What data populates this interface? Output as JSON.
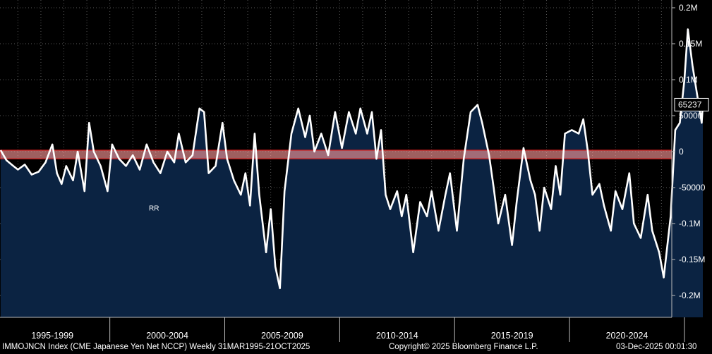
{
  "chart_data": {
    "type": "area",
    "title": "",
    "xlabel": "",
    "ylabel": "",
    "x_range": [
      1995.25,
      2025.8
    ],
    "ylim": [
      -240000,
      200000
    ],
    "grid": true,
    "legend": "none",
    "y_ticks": [
      {
        "value": 200000,
        "label": "0.2M"
      },
      {
        "value": 150000,
        "label": "0.15M"
      },
      {
        "value": 100000,
        "label": "0.1M"
      },
      {
        "value": 50000,
        "label": "50000"
      },
      {
        "value": 0,
        "label": "0"
      },
      {
        "value": -50000,
        "label": "-50000"
      },
      {
        "value": -100000,
        "label": "-0.1M"
      },
      {
        "value": -150000,
        "label": "-0.15M"
      },
      {
        "value": -200000,
        "label": "-0.2M"
      }
    ],
    "x_bands": [
      {
        "label": "1995-1999",
        "start": 1995,
        "end": 2000
      },
      {
        "label": "2000-2004",
        "start": 2000,
        "end": 2005
      },
      {
        "label": "2005-2009",
        "start": 2005,
        "end": 2010
      },
      {
        "label": "2010-2014",
        "start": 2010,
        "end": 2015
      },
      {
        "label": "2015-2019",
        "start": 2015,
        "end": 2020
      },
      {
        "label": "2020-2024",
        "start": 2020,
        "end": 2025
      }
    ],
    "highlight_band": {
      "y_from": -10000,
      "y_to": 2000,
      "color": "#ff9a9a"
    },
    "last_value": {
      "value": 65237,
      "label": "65237"
    },
    "annotation": {
      "text": "RR",
      "x": 2001.7,
      "y": -78000
    },
    "series": [
      {
        "color": "#ffffff",
        "fill": "#0b2342",
        "points": [
          [
            1995.25,
            2000
          ],
          [
            1995.5,
            -12000
          ],
          [
            1995.8,
            -20000
          ],
          [
            1996.0,
            -25000
          ],
          [
            1996.3,
            -18000
          ],
          [
            1996.6,
            -32000
          ],
          [
            1996.9,
            -28000
          ],
          [
            1997.2,
            -15000
          ],
          [
            1997.5,
            10000
          ],
          [
            1997.7,
            -30000
          ],
          [
            1997.9,
            -45000
          ],
          [
            1998.1,
            -20000
          ],
          [
            1998.4,
            -40000
          ],
          [
            1998.6,
            0
          ],
          [
            1998.9,
            -55000
          ],
          [
            1999.1,
            40000
          ],
          [
            1999.3,
            0
          ],
          [
            1999.6,
            -20000
          ],
          [
            1999.9,
            -55000
          ],
          [
            2000.1,
            10000
          ],
          [
            2000.4,
            -10000
          ],
          [
            2000.7,
            -20000
          ],
          [
            2001.0,
            -5000
          ],
          [
            2001.3,
            -25000
          ],
          [
            2001.6,
            10000
          ],
          [
            2001.9,
            -15000
          ],
          [
            2002.2,
            -30000
          ],
          [
            2002.5,
            0
          ],
          [
            2002.8,
            -15000
          ],
          [
            2003.0,
            25000
          ],
          [
            2003.3,
            -15000
          ],
          [
            2003.6,
            -5000
          ],
          [
            2003.9,
            60000
          ],
          [
            2004.1,
            55000
          ],
          [
            2004.3,
            -30000
          ],
          [
            2004.6,
            -20000
          ],
          [
            2004.9,
            40000
          ],
          [
            2005.1,
            -10000
          ],
          [
            2005.4,
            -40000
          ],
          [
            2005.7,
            -60000
          ],
          [
            2005.9,
            -30000
          ],
          [
            2006.1,
            -75000
          ],
          [
            2006.3,
            25000
          ],
          [
            2006.5,
            -60000
          ],
          [
            2006.8,
            -140000
          ],
          [
            2007.0,
            -80000
          ],
          [
            2007.2,
            -160000
          ],
          [
            2007.4,
            -190000
          ],
          [
            2007.6,
            -55000
          ],
          [
            2007.9,
            25000
          ],
          [
            2008.2,
            60000
          ],
          [
            2008.5,
            20000
          ],
          [
            2008.7,
            50000
          ],
          [
            2008.9,
            0
          ],
          [
            2009.2,
            25000
          ],
          [
            2009.5,
            -5000
          ],
          [
            2009.8,
            55000
          ],
          [
            2010.1,
            5000
          ],
          [
            2010.4,
            55000
          ],
          [
            2010.7,
            25000
          ],
          [
            2010.9,
            60000
          ],
          [
            2011.2,
            25000
          ],
          [
            2011.4,
            55000
          ],
          [
            2011.6,
            -10000
          ],
          [
            2011.8,
            30000
          ],
          [
            2012.0,
            -60000
          ],
          [
            2012.2,
            -80000
          ],
          [
            2012.5,
            -55000
          ],
          [
            2012.7,
            -90000
          ],
          [
            2012.9,
            -60000
          ],
          [
            2013.2,
            -140000
          ],
          [
            2013.5,
            -70000
          ],
          [
            2013.8,
            -90000
          ],
          [
            2014.0,
            -55000
          ],
          [
            2014.3,
            -110000
          ],
          [
            2014.6,
            -60000
          ],
          [
            2014.8,
            -30000
          ],
          [
            2015.1,
            -110000
          ],
          [
            2015.4,
            -10000
          ],
          [
            2015.7,
            55000
          ],
          [
            2016.0,
            65000
          ],
          [
            2016.2,
            40000
          ],
          [
            2016.5,
            -5000
          ],
          [
            2016.7,
            -50000
          ],
          [
            2016.9,
            -100000
          ],
          [
            2017.2,
            -60000
          ],
          [
            2017.5,
            -130000
          ],
          [
            2017.7,
            -70000
          ],
          [
            2018.0,
            5000
          ],
          [
            2018.3,
            -40000
          ],
          [
            2018.5,
            -60000
          ],
          [
            2018.7,
            -110000
          ],
          [
            2018.9,
            -50000
          ],
          [
            2019.2,
            -80000
          ],
          [
            2019.4,
            -20000
          ],
          [
            2019.6,
            -60000
          ],
          [
            2019.8,
            25000
          ],
          [
            2020.1,
            30000
          ],
          [
            2020.4,
            25000
          ],
          [
            2020.6,
            45000
          ],
          [
            2020.8,
            0
          ],
          [
            2021.0,
            -60000
          ],
          [
            2021.3,
            -45000
          ],
          [
            2021.5,
            -75000
          ],
          [
            2021.8,
            -110000
          ],
          [
            2022.0,
            -55000
          ],
          [
            2022.3,
            -80000
          ],
          [
            2022.6,
            -30000
          ],
          [
            2022.8,
            -100000
          ],
          [
            2023.1,
            -120000
          ],
          [
            2023.4,
            -60000
          ],
          [
            2023.6,
            -110000
          ],
          [
            2023.9,
            -140000
          ],
          [
            2024.1,
            -175000
          ],
          [
            2024.4,
            -90000
          ],
          [
            2024.6,
            30000
          ],
          [
            2024.8,
            40000
          ],
          [
            2025.0,
            100000
          ],
          [
            2025.15,
            170000
          ],
          [
            2025.35,
            120000
          ],
          [
            2025.55,
            80000
          ],
          [
            2025.75,
            40000
          ],
          [
            2025.8,
            65237
          ]
        ]
      }
    ]
  },
  "footer": {
    "index_info": "IMMOJNCN Index (CME Japanese Yen Net NCCP) Weekly 31MAR1995-21OCT2025",
    "copyright": "Copyright© 2025 Bloomberg Finance L.P.",
    "timestamp": "03-Dec-2025 00:01:30"
  },
  "colors": {
    "background": "#000000",
    "area_fill": "#0b2342",
    "line": "#ffffff",
    "highlight": "#ff9a9a",
    "highlight_border": "#d11a1a"
  }
}
